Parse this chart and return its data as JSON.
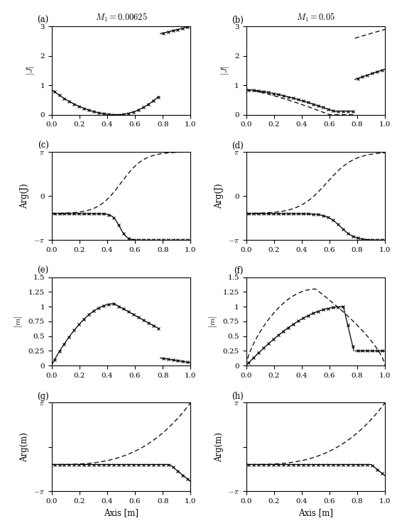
{
  "title_left": "$M_1 = 0.00625$",
  "title_right": "$M_1 = 0.05$",
  "panel_labels": [
    "(a)",
    "(b)",
    "(c)",
    "(d)",
    "(e)",
    "(f)",
    "(g)",
    "(h)"
  ],
  "xlabel": "Axis [m]",
  "pi": 3.14159265358979,
  "x_ticks": [
    0,
    0.2,
    0.4,
    0.6,
    0.8,
    1.0
  ]
}
